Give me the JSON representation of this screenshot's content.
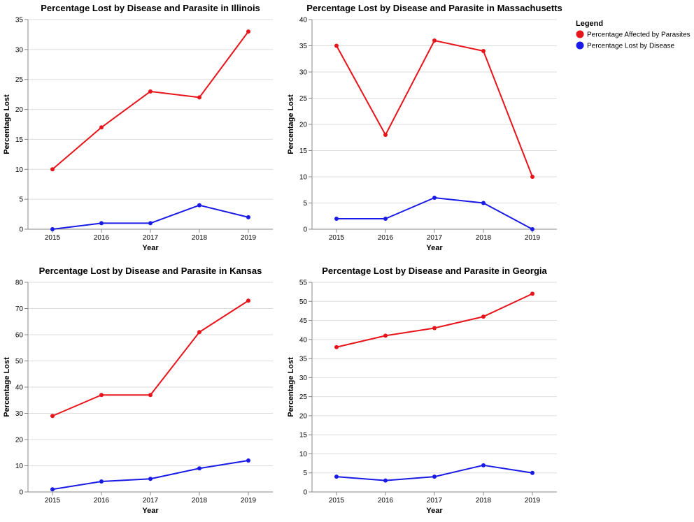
{
  "chart_data": [
    {
      "type": "line",
      "title": "Percentage Lost by Disease and Parasite in Illinois",
      "xlabel": "Year",
      "ylabel": "Percentage Lost",
      "x": [
        2015,
        2016,
        2017,
        2018,
        2019
      ],
      "ylim": [
        0,
        35
      ],
      "yticks": [
        0,
        5,
        10,
        15,
        20,
        25,
        30,
        35
      ],
      "grid": true,
      "series": [
        {
          "name": "Percentage Affected by Parasites",
          "color": "#e8141b",
          "values": [
            10,
            17,
            23,
            22,
            33
          ]
        },
        {
          "name": "Percentage Lost by Disease",
          "color": "#1a1ae6",
          "values": [
            0,
            1,
            1,
            4,
            2
          ]
        }
      ]
    },
    {
      "type": "line",
      "title": "Percentage Lost by Disease and Parasite in Massachusetts",
      "xlabel": "Year",
      "ylabel": "Percentage Lost",
      "x": [
        2015,
        2016,
        2017,
        2018,
        2019
      ],
      "ylim": [
        0,
        40
      ],
      "yticks": [
        0,
        5,
        10,
        15,
        20,
        25,
        30,
        35,
        40
      ],
      "grid": true,
      "series": [
        {
          "name": "Percentage Affected by Parasites",
          "color": "#e8141b",
          "values": [
            35,
            18,
            36,
            34,
            10
          ]
        },
        {
          "name": "Percentage Lost by Disease",
          "color": "#1a1ae6",
          "values": [
            2,
            2,
            6,
            5,
            0
          ]
        }
      ]
    },
    {
      "type": "line",
      "title": "Percentage Lost by Disease and Parasite in Kansas",
      "xlabel": "Year",
      "ylabel": "Percentage Lost",
      "x": [
        2015,
        2016,
        2017,
        2018,
        2019
      ],
      "ylim": [
        0,
        80
      ],
      "yticks": [
        0,
        10,
        20,
        30,
        40,
        50,
        60,
        70,
        80
      ],
      "grid": true,
      "series": [
        {
          "name": "Percentage Affected by Parasites",
          "color": "#e8141b",
          "values": [
            29,
            37,
            37,
            61,
            73
          ]
        },
        {
          "name": "Percentage Lost by Disease",
          "color": "#1a1ae6",
          "values": [
            1,
            4,
            5,
            9,
            12
          ]
        }
      ]
    },
    {
      "type": "line",
      "title": "Percentage Lost by Disease and Parasite in Georgia",
      "xlabel": "Year",
      "ylabel": "Percentage Lost",
      "x": [
        2015,
        2016,
        2017,
        2018,
        2019
      ],
      "ylim": [
        0,
        55
      ],
      "yticks": [
        0,
        5,
        10,
        15,
        20,
        25,
        30,
        35,
        40,
        45,
        50,
        55
      ],
      "grid": true,
      "series": [
        {
          "name": "Percentage Affected by Parasites",
          "color": "#e8141b",
          "values": [
            38,
            41,
            43,
            46,
            52
          ]
        },
        {
          "name": "Percentage Lost by Disease",
          "color": "#1a1ae6",
          "values": [
            4,
            3,
            4,
            7,
            5
          ]
        }
      ]
    }
  ],
  "legend": {
    "title": "Legend",
    "placement": "top-right",
    "items": [
      {
        "label": "Percentage Affected by Parasites",
        "color": "#e8141b"
      },
      {
        "label": "Percentage Lost by Disease",
        "color": "#1a1ae6"
      }
    ]
  }
}
